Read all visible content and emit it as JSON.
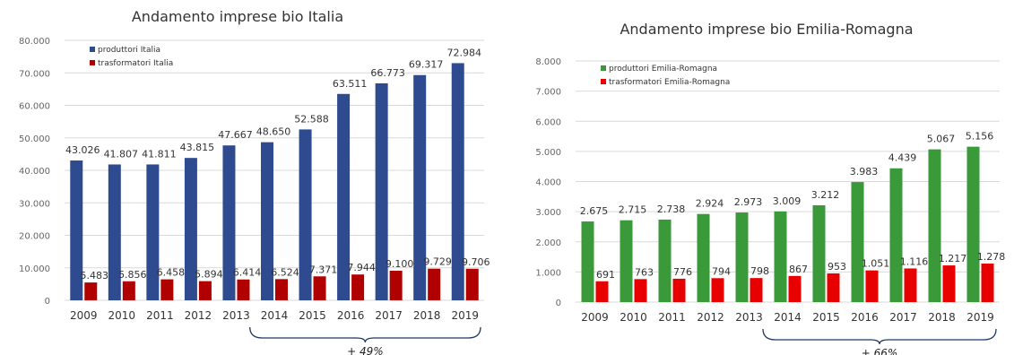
{
  "chart_data": [
    {
      "type": "bar",
      "title": "Andamento imprese bio Italia",
      "categories": [
        "2009",
        "2010",
        "2011",
        "2012",
        "2013",
        "2014",
        "2015",
        "2016",
        "2017",
        "2018",
        "2019"
      ],
      "series": [
        {
          "name": "produttori Italia",
          "values": [
            43026,
            41807,
            41811,
            43815,
            47667,
            48650,
            52588,
            63511,
            66773,
            69317,
            72984
          ],
          "labels": [
            "43.026",
            "41.807",
            "41.811",
            "43.815",
            "47.667",
            "48.650",
            "52.588",
            "63.511",
            "66.773",
            "69.317",
            "72.984"
          ],
          "color": "#2F4B8F"
        },
        {
          "name": "trasformatori Italia",
          "values": [
            5483,
            5856,
            6458,
            5894,
            6414,
            6524,
            7371,
            7944,
            9100,
            9729,
            9706
          ],
          "labels": [
            "5.483",
            "5.856",
            "6.458",
            "5.894",
            "6.414",
            "6.524",
            "7.371",
            "7.944",
            "9.100",
            "9.729",
            "9.706"
          ],
          "color": "#B00000"
        }
      ],
      "ylim": [
        0,
        80000
      ],
      "yticks": [
        "0",
        "10.000",
        "20.000",
        "30.000",
        "40.000",
        "50.000",
        "60.000",
        "70.000",
        "80.000"
      ],
      "legend": "top-left",
      "grid": true,
      "annotation": "+ 49%",
      "brace_from": "2014",
      "brace_to": "2019"
    },
    {
      "type": "bar",
      "title": "Andamento imprese bio Emilia-Romagna",
      "categories": [
        "2009",
        "2010",
        "2011",
        "2012",
        "2013",
        "2014",
        "2015",
        "2016",
        "2017",
        "2018",
        "2019"
      ],
      "series": [
        {
          "name": "produttori Emilia-Romagna",
          "values": [
            2675,
            2715,
            2738,
            2924,
            2973,
            3009,
            3212,
            3983,
            4439,
            5067,
            5156
          ],
          "labels": [
            "2.675",
            "2.715",
            "2.738",
            "2.924",
            "2.973",
            "3.009",
            "3.212",
            "3.983",
            "4.439",
            "5.067",
            "5.156"
          ],
          "color": "#3A9A3A"
        },
        {
          "name": "trasformatori Emilia-Romagna",
          "values": [
            691,
            763,
            776,
            794,
            798,
            867,
            953,
            1051,
            1116,
            1217,
            1278
          ],
          "labels": [
            "691",
            "763",
            "776",
            "794",
            "798",
            "867",
            "953",
            "1.051",
            "1.116",
            "1.217",
            "1.278"
          ],
          "color": "#E80000"
        }
      ],
      "ylim": [
        0,
        8000
      ],
      "yticks": [
        "0",
        "1.000",
        "2.000",
        "3.000",
        "4.000",
        "5.000",
        "6.000",
        "7.000",
        "8.000"
      ],
      "legend": "top-left",
      "grid": true,
      "annotation": "+ 66%",
      "brace_from": "2014",
      "brace_to": "2019"
    }
  ]
}
